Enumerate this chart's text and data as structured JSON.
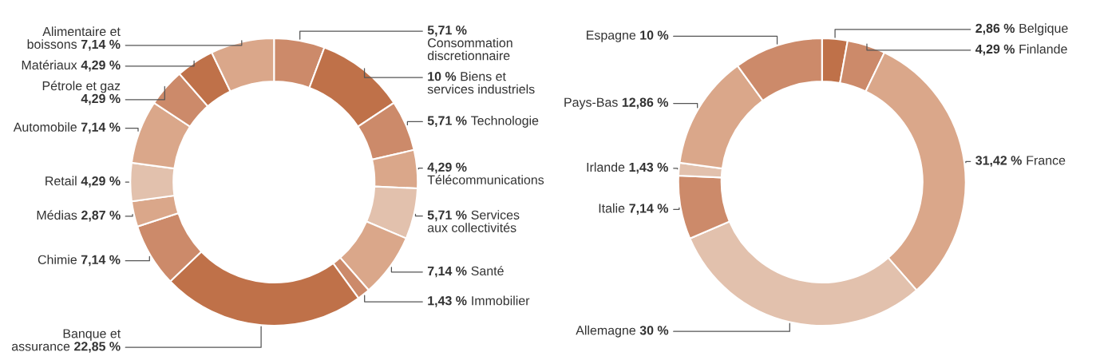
{
  "chart_data": [
    {
      "type": "donut",
      "categories": [
        "Consommation discretionnaire",
        "Biens et services industriels",
        "Technologie",
        "Télécommunications",
        "Services aux collectivités",
        "Santé",
        "Immobilier",
        "Banque et assurance",
        "Chimie",
        "Médias",
        "Retail",
        "Automobile",
        "Pétrole et gaz",
        "Matériaux",
        "Alimentaire et boissons"
      ],
      "values": [
        5.71,
        10,
        5.71,
        4.29,
        5.71,
        7.14,
        1.43,
        22.85,
        7.14,
        2.87,
        4.29,
        7.14,
        4.29,
        4.29,
        7.14
      ],
      "value_labels": [
        "5,71 %",
        "10 %",
        "5,71 %",
        "4,29 %",
        "5,71 %",
        "7,14 %",
        "1,43 %",
        "22,85 %",
        "7,14 %",
        "2,87 %",
        "4,29 %",
        "7,14 %",
        "4,29 %",
        "4,29 %",
        "7,14 %"
      ],
      "colors": [
        "#cc8a6a",
        "#bf7149",
        "#cc8a6a",
        "#daa78a",
        "#e2c1ad",
        "#daa78a",
        "#cc8a6a",
        "#bf7149",
        "#cc8a6a",
        "#daa78a",
        "#e2c1ad",
        "#daa78a",
        "#cc8a6a",
        "#bf7149",
        "#daa78a"
      ]
    },
    {
      "type": "donut",
      "categories": [
        "Belgique",
        "Finlande",
        "France",
        "Allemagne",
        "Italie",
        "Irlande",
        "Pays-Bas",
        "Espagne"
      ],
      "values": [
        2.86,
        4.29,
        31.42,
        30,
        7.14,
        1.43,
        12.86,
        10
      ],
      "value_labels": [
        "2,86 %",
        "4,29 %",
        "31,42 %",
        "30 %",
        "7,14 %",
        "1,43 %",
        "12,86 %",
        "10 %"
      ],
      "colors": [
        "#bf7149",
        "#cc8a6a",
        "#daa78a",
        "#e2c1ad",
        "#cc8a6a",
        "#e2c1ad",
        "#daa78a",
        "#cc8a6a"
      ]
    }
  ]
}
